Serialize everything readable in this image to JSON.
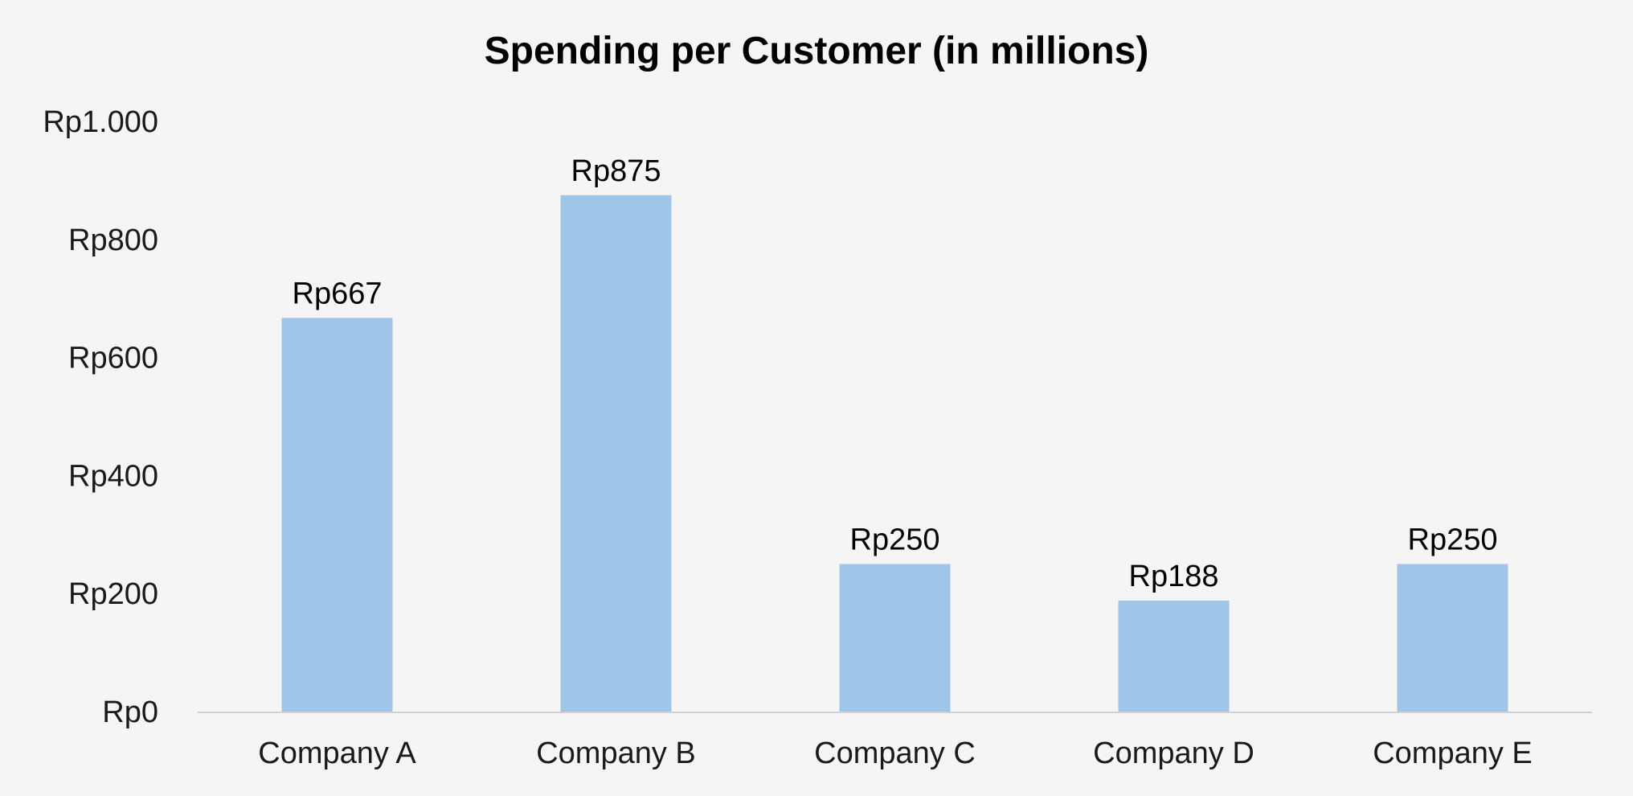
{
  "chart_data": {
    "type": "bar",
    "title": "Spending per Customer (in millions)",
    "xlabel": "",
    "ylabel": "",
    "categories": [
      "Company A",
      "Company B",
      "Company C",
      "Company D",
      "Company E"
    ],
    "values": [
      667,
      875,
      250,
      188,
      250
    ],
    "data_labels": [
      "Rp667",
      "Rp875",
      "Rp250",
      "Rp188",
      "Rp250"
    ],
    "y_ticks": [
      0,
      200,
      400,
      600,
      800,
      1000
    ],
    "y_tick_labels": [
      "Rp0",
      "Rp200",
      "Rp400",
      "Rp600",
      "Rp800",
      "Rp1.000"
    ],
    "ylim": [
      0,
      1000
    ],
    "grid": false,
    "legend": "none",
    "colors": {
      "bar": "#9fc5e8",
      "axis": "#d0d0d0",
      "background": "#f5f5f5"
    }
  }
}
